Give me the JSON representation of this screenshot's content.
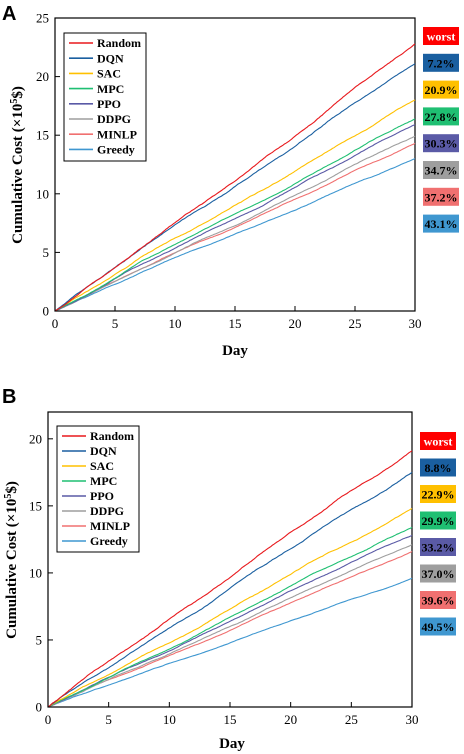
{
  "chart_data": [
    {
      "type": "line",
      "panel_label": "A",
      "xlabel": "Day",
      "ylabel_main": "Cumulative Cost (×10",
      "ylabel_sup": "5",
      "ylabel_end": "$)",
      "xlim": [
        0,
        30
      ],
      "ylim": [
        0,
        25
      ],
      "xticks": [
        "0",
        "5",
        "10",
        "15",
        "20",
        "25",
        "30"
      ],
      "yticks": [
        "0",
        "5",
        "10",
        "15",
        "20",
        "25"
      ],
      "legend_position": "top-left",
      "series": [
        {
          "name": "Random",
          "color": "#e8191d",
          "end": 22.8,
          "badge": "worst",
          "badge_color": "#ff0000"
        },
        {
          "name": "DQN",
          "color": "#1a5fa0",
          "end": 21.1,
          "badge": "7.2%",
          "badge_color": "#1a5fa0"
        },
        {
          "name": "SAC",
          "color": "#ffc000",
          "end": 18.0,
          "badge": "20.9%",
          "badge_color": "#ffc000"
        },
        {
          "name": "MPC",
          "color": "#1fbf72",
          "end": 16.4,
          "badge": "27.8%",
          "badge_color": "#1fbf72"
        },
        {
          "name": "PPO",
          "color": "#5a5aa6",
          "end": 15.9,
          "badge": "30.3%",
          "badge_color": "#5a5aa6"
        },
        {
          "name": "DDPG",
          "color": "#9e9e9e",
          "end": 14.9,
          "badge": "34.7%",
          "badge_color": "#9e9e9e"
        },
        {
          "name": "MINLP",
          "color": "#f07070",
          "end": 14.3,
          "badge": "37.2%",
          "badge_color": "#f07070"
        },
        {
          "name": "Greedy",
          "color": "#3f97d0",
          "end": 13.0,
          "badge": "43.1%",
          "badge_color": "#3f97d0"
        }
      ]
    },
    {
      "type": "line",
      "panel_label": "B",
      "xlabel": "Day",
      "ylabel_main": "Cumulative Cost (×10",
      "ylabel_sup": "5",
      "ylabel_end": "$)",
      "xlim": [
        0,
        30
      ],
      "ylim": [
        0,
        22
      ],
      "xticks": [
        "0",
        "5",
        "10",
        "15",
        "20",
        "25",
        "30"
      ],
      "yticks": [
        "0",
        "5",
        "10",
        "15",
        "20"
      ],
      "legend_position": "top-left",
      "series": [
        {
          "name": "Random",
          "color": "#e8191d",
          "end": 19.1,
          "badge": "worst",
          "badge_color": "#ff0000"
        },
        {
          "name": "DQN",
          "color": "#1a5fa0",
          "end": 17.5,
          "badge": "8.8%",
          "badge_color": "#1a5fa0"
        },
        {
          "name": "SAC",
          "color": "#ffc000",
          "end": 14.8,
          "badge": "22.9%",
          "badge_color": "#ffc000"
        },
        {
          "name": "MPC",
          "color": "#1fbf72",
          "end": 13.4,
          "badge": "29.9%",
          "badge_color": "#1fbf72"
        },
        {
          "name": "PPO",
          "color": "#5a5aa6",
          "end": 12.8,
          "badge": "33.2%",
          "badge_color": "#5a5aa6"
        },
        {
          "name": "DDPG",
          "color": "#9e9e9e",
          "end": 12.1,
          "badge": "37.0%",
          "badge_color": "#9e9e9e"
        },
        {
          "name": "MINLP",
          "color": "#f07070",
          "end": 11.6,
          "badge": "39.6%",
          "badge_color": "#f07070"
        },
        {
          "name": "Greedy",
          "color": "#3f97d0",
          "end": 9.6,
          "badge": "49.5%",
          "badge_color": "#3f97d0"
        }
      ]
    }
  ]
}
